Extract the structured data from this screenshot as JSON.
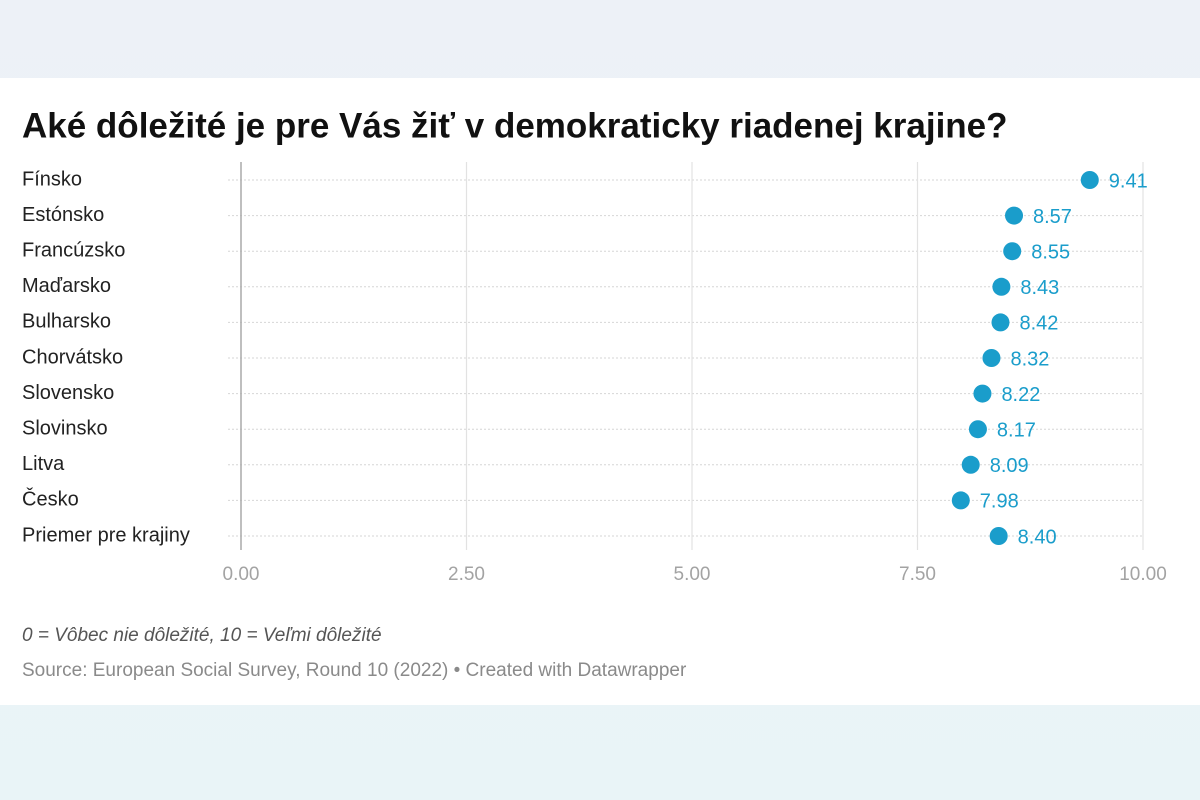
{
  "chart_data": {
    "type": "dot",
    "title": "Aké dôležité je pre Vás žiť v demokraticky riadenej krajine?",
    "categories": [
      "Fínsko",
      "Estónsko",
      "Francúzsko",
      "Maďarsko",
      "Bulharsko",
      "Chorvátsko",
      "Slovensko",
      "Slovinsko",
      "Litva",
      "Česko",
      "Priemer pre krajiny"
    ],
    "values": [
      9.41,
      8.57,
      8.55,
      8.43,
      8.42,
      8.32,
      8.22,
      8.17,
      8.09,
      7.98,
      8.4
    ],
    "value_labels": [
      "9.41",
      "8.57",
      "8.55",
      "8.43",
      "8.42",
      "8.32",
      "8.22",
      "8.17",
      "8.09",
      "7.98",
      "8.40"
    ],
    "color": "#1a9dcb",
    "xlim": [
      0,
      10
    ],
    "xticks": [
      {
        "value": 0,
        "label": "0.00"
      },
      {
        "value": 2.5,
        "label": "2.50"
      },
      {
        "value": 5,
        "label": "5.00"
      },
      {
        "value": 7.5,
        "label": "7.50"
      },
      {
        "value": 10,
        "label": "10.00"
      }
    ],
    "grid": true,
    "note": "0 = Vôbec nie dôležité, 10 = Veľmi dôležité",
    "source": "Source: European Social Survey, Round 10 (2022) • Created with Datawrapper"
  }
}
